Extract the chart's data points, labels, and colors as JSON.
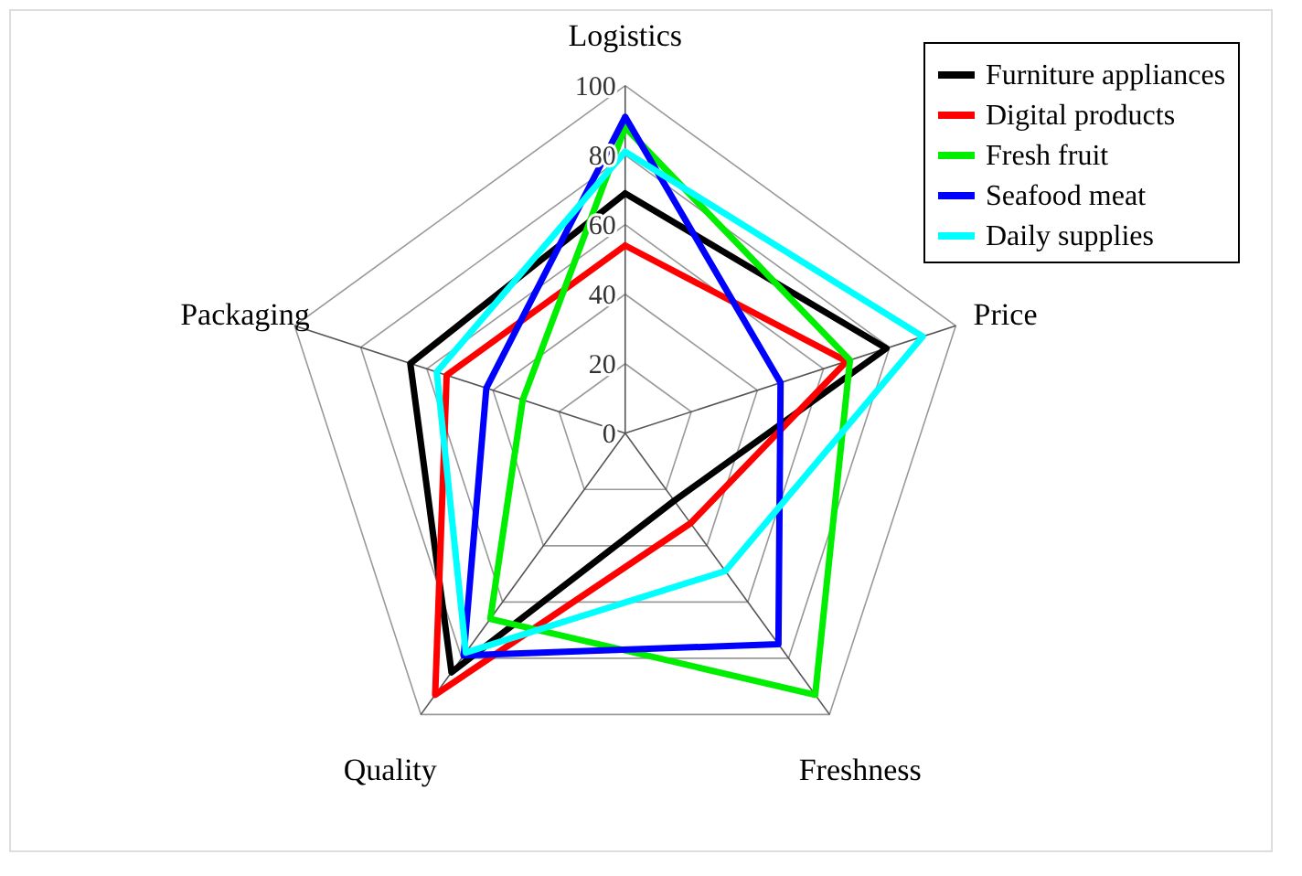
{
  "chart_data": {
    "type": "radar",
    "categories": [
      "Logistics",
      "Price",
      "Freshness",
      "Quality",
      "Packaging"
    ],
    "ylim": [
      0,
      100
    ],
    "yticks": [
      0,
      20,
      40,
      60,
      80,
      100
    ],
    "grid": true,
    "legend": "top right",
    "line_style": "solid",
    "marker": "none",
    "series": [
      {
        "name": "Furniture appliances",
        "color": "#000000",
        "values": [
          69,
          79,
          24,
          85,
          65
        ]
      },
      {
        "name": "Digital products",
        "color": "#ff0000",
        "values": [
          54,
          67,
          32,
          93,
          54
        ]
      },
      {
        "name": "Fresh fruit",
        "color": "#00ee00",
        "values": [
          88,
          68,
          93,
          66,
          31
        ]
      },
      {
        "name": "Seafood meat",
        "color": "#0000ff",
        "values": [
          91,
          47,
          75,
          79,
          42
        ]
      },
      {
        "name": "Daily supplies",
        "color": "#00ffff",
        "values": [
          81,
          90,
          49,
          78,
          57
        ]
      }
    ]
  }
}
